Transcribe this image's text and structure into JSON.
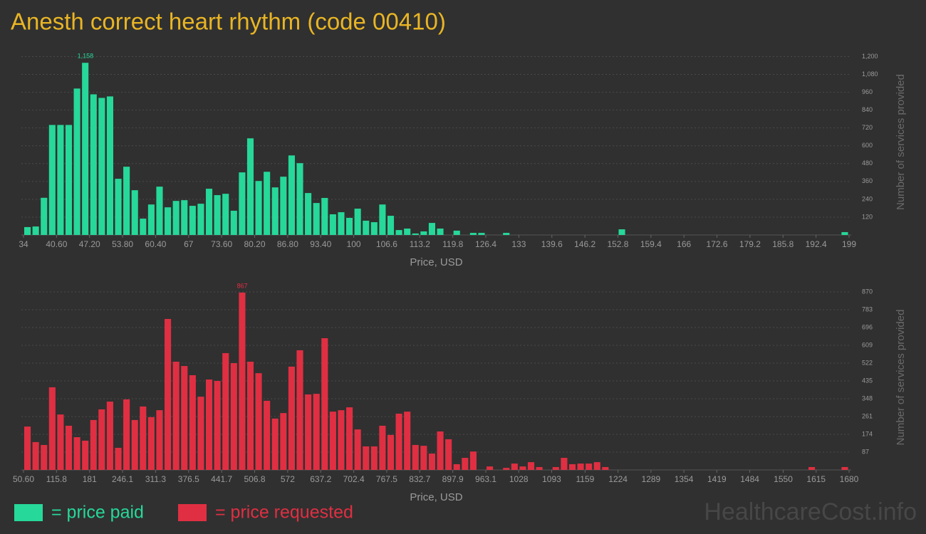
{
  "title": "Anesth correct heart rhythm (code 00410)",
  "watermark": "HealthcareCost.info",
  "chart_data": [
    {
      "type": "histogram",
      "xlabel": "Price, USD",
      "ylabel": "Number of services provided",
      "bins": [
        34,
        35.65,
        37.3,
        38.95,
        40.6,
        42.25,
        43.9,
        45.55,
        47.2,
        48.85,
        50.5,
        52.15,
        53.8,
        55.45,
        57.1,
        58.75,
        60.4,
        62.05,
        63.7,
        65.35,
        67,
        68.65,
        70.3,
        71.95,
        73.6,
        75.25,
        76.9,
        78.55,
        80.2,
        81.85,
        83.5,
        85.15,
        86.8,
        88.45,
        90.1,
        91.75,
        93.4,
        95.05,
        96.7,
        98.35,
        100,
        101.65,
        103.3,
        104.95,
        106.6,
        108.25,
        109.9,
        111.55,
        113.2,
        114.85,
        116.5,
        118.15,
        119.8,
        121.45,
        123.1,
        124.75,
        126.4,
        128.05,
        129.7,
        131.35,
        133,
        134.65,
        136.3,
        137.95,
        139.6,
        141.25,
        142.9,
        144.55,
        146.2,
        147.85,
        149.5,
        151.15,
        152.8,
        154.45,
        156.1,
        157.75,
        159.4,
        161.05,
        162.7,
        164.35,
        166,
        167.65,
        169.3,
        170.95,
        172.6,
        174.25,
        175.9,
        177.55,
        179.2,
        180.85,
        182.5,
        184.15,
        185.8,
        187.45,
        189.1,
        190.75,
        192.4,
        194.05,
        195.7,
        197.35,
        199
      ],
      "series": [
        {
          "name": "= price paid",
          "color": "#26d899",
          "values": [
            53,
            57,
            250,
            740,
            740,
            740,
            985,
            1158,
            946,
            922,
            932,
            378,
            459,
            301,
            110,
            205,
            325,
            186,
            229,
            234,
            196,
            210,
            311,
            268,
            277,
            163,
            421,
            650,
            363,
            425,
            320,
            392,
            535,
            483,
            282,
            215,
            249,
            139,
            153,
            115,
            177,
            96,
            86,
            205,
            129,
            33,
            43,
            10,
            24,
            81,
            43,
            0,
            29,
            0,
            14,
            14,
            0,
            0,
            14,
            0,
            0,
            0,
            0,
            0,
            0,
            0,
            0,
            0,
            0,
            0,
            0,
            0,
            38,
            0,
            0,
            0,
            0,
            0,
            0,
            0,
            0,
            0,
            0,
            0,
            0,
            0,
            0,
            0,
            0,
            0,
            0,
            0,
            0,
            0,
            0,
            0,
            0,
            0,
            0,
            19
          ],
          "value_labels": [
            null,
            null,
            null,
            null,
            null,
            null,
            null,
            "1,158",
            null,
            null,
            null,
            null,
            null,
            null,
            null,
            null,
            null,
            null,
            null,
            null,
            null,
            null,
            null,
            null,
            null,
            null,
            null,
            null,
            null,
            null,
            null,
            null,
            null,
            null,
            null,
            null,
            null,
            null,
            null,
            null,
            null,
            null,
            null,
            null,
            null,
            null,
            null,
            null,
            null,
            null,
            null,
            null,
            null,
            null,
            null,
            null,
            null,
            null,
            null,
            null,
            null,
            null,
            null,
            null,
            null,
            null,
            null,
            null,
            null,
            null,
            null,
            null,
            null,
            null,
            null,
            null,
            null,
            null,
            null,
            null,
            null,
            null,
            null,
            null,
            null,
            null,
            null,
            null,
            null,
            null,
            null,
            null,
            null,
            null,
            null,
            null,
            null,
            null,
            null,
            null
          ]
        }
      ],
      "xlim": [
        34,
        199
      ],
      "xticks": [
        34,
        {
          "value": 40.6,
          "label": "40.60"
        },
        {
          "value": 47.2,
          "label": "47.20"
        },
        {
          "value": 53.8,
          "label": "53.80"
        },
        {
          "value": 60.4,
          "label": "60.40"
        },
        67,
        {
          "value": 73.6,
          "label": "73.60"
        },
        {
          "value": 80.2,
          "label": "80.20"
        },
        {
          "value": 86.8,
          "label": "86.80"
        },
        {
          "value": 93.4,
          "label": "93.40"
        },
        100,
        106.6,
        113.2,
        119.8,
        126.4,
        133,
        139.6,
        146.2,
        152.8,
        159.4,
        166,
        172.6,
        179.2,
        185.8,
        192.4,
        199
      ],
      "ylim": [
        0,
        1250
      ],
      "yticks": [
        120,
        240,
        360,
        480,
        600,
        720,
        840,
        960,
        {
          "value": 1080,
          "label": "1,080"
        },
        {
          "value": 1200,
          "label": "1,200"
        }
      ],
      "grid": true
    },
    {
      "type": "histogram",
      "xlabel": "Price, USD",
      "ylabel": "Number of services provided",
      "bins": [
        50.6,
        66.9,
        83.2,
        99.5,
        115.8,
        132.1,
        148.4,
        164.7,
        181.0,
        197.2,
        213.5,
        229.8,
        246.1,
        262.4,
        278.7,
        295.0,
        311.3,
        327.6,
        343.9,
        360.2,
        376.5,
        392.8,
        409.1,
        425.4,
        441.7,
        458.0,
        474.3,
        490.6,
        506.8,
        523.1,
        539.4,
        555.7,
        572.0,
        588.3,
        604.6,
        620.9,
        637.2,
        653.5,
        669.8,
        686.1,
        702.4,
        718.7,
        735.0,
        751.2,
        767.5,
        783.8,
        800.1,
        816.4,
        832.7,
        849.0,
        865.3,
        881.6,
        897.9,
        914.2,
        930.5,
        946.8,
        963.1,
        979.4,
        995.7,
        1011.9,
        1028.2,
        1044.5,
        1060.8,
        1077.1,
        1093.4,
        1109.7,
        1126.0,
        1142.3,
        1158.6,
        1174.9,
        1191.2,
        1207.5,
        1223.7,
        1240.0,
        1256.3,
        1272.6,
        1288.9,
        1305.2,
        1321.5,
        1337.8,
        1354.1,
        1370.4,
        1386.7,
        1403.0,
        1419.3,
        1435.6,
        1451.9,
        1468.1,
        1484.4,
        1500.7,
        1517.0,
        1533.3,
        1549.6,
        1565.9,
        1582.2,
        1598.5,
        1614.8,
        1631.1,
        1647.4,
        1663.7,
        1680.0
      ],
      "series": [
        {
          "name": "= price requested",
          "color": "#e02f42",
          "values": [
            212,
            136,
            122,
            404,
            271,
            216,
            160,
            143,
            244,
            296,
            334,
            108,
            345,
            244,
            310,
            258,
            292,
            738,
            529,
            508,
            463,
            358,
            442,
            435,
            571,
            522,
            867,
            529,
            473,
            338,
            251,
            278,
            505,
            585,
            369,
            372,
            644,
            285,
            292,
            306,
            198,
            115,
            115,
            216,
            171,
            275,
            285,
            122,
            118,
            80,
            188,
            150,
            28,
            59,
            90,
            0,
            17,
            0,
            10,
            31,
            17,
            38,
            14,
            0,
            14,
            59,
            28,
            31,
            31,
            38,
            14,
            0,
            0,
            0,
            0,
            0,
            0,
            0,
            0,
            0,
            0,
            0,
            0,
            0,
            0,
            0,
            0,
            0,
            0,
            0,
            0,
            0,
            0,
            0,
            0,
            14,
            0,
            0,
            0,
            14
          ],
          "value_labels": [
            null,
            null,
            null,
            null,
            null,
            null,
            null,
            null,
            null,
            null,
            null,
            null,
            null,
            null,
            null,
            null,
            null,
            null,
            null,
            null,
            null,
            null,
            null,
            null,
            null,
            null,
            "867",
            null,
            null,
            null,
            null,
            null,
            null,
            null,
            null,
            null,
            null,
            null,
            null,
            null,
            null,
            null,
            null,
            null,
            null,
            null,
            null,
            null,
            null,
            null,
            null,
            null,
            null,
            null,
            null,
            null,
            null,
            null,
            null,
            null,
            null,
            null,
            null,
            null,
            null,
            null,
            null,
            null,
            null,
            null,
            null,
            null,
            null,
            null,
            null,
            null,
            null,
            null,
            null,
            null,
            null,
            null,
            null,
            null,
            null,
            null,
            null,
            null,
            null,
            null,
            null,
            null,
            null,
            null,
            null,
            null,
            null,
            null,
            null,
            null
          ]
        }
      ],
      "xlim": [
        50.6,
        1680
      ],
      "xticks": [
        {
          "value": 50.6,
          "label": "50.60"
        },
        115.8,
        181,
        246.1,
        311.3,
        376.5,
        441.7,
        506.8,
        572,
        637.2,
        702.4,
        767.5,
        832.7,
        897.9,
        963.1,
        1028,
        1093,
        1159,
        1224,
        1289,
        1354,
        1419,
        1484,
        1550,
        1615,
        1680
      ],
      "ylim": [
        0,
        905
      ],
      "yticks": [
        87,
        174,
        261,
        348,
        435,
        522,
        609,
        696,
        783,
        870
      ],
      "grid": true
    }
  ]
}
